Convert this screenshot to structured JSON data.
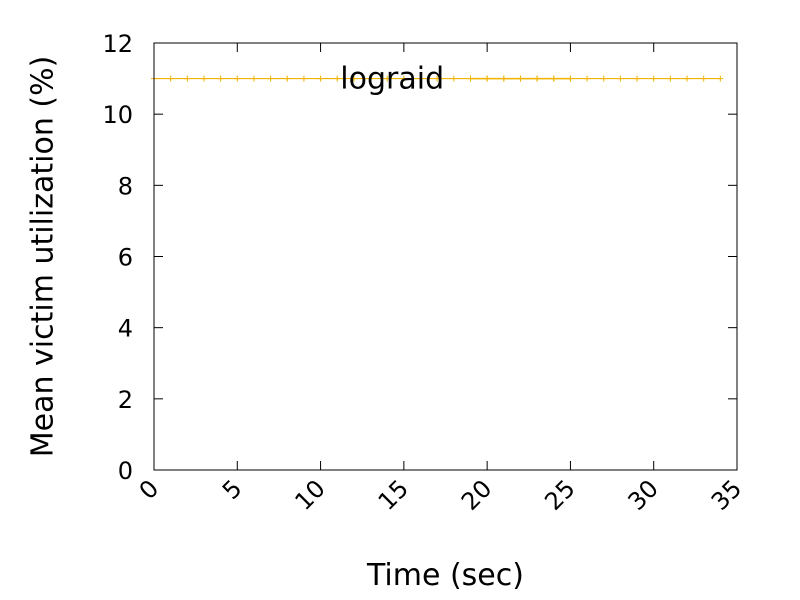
{
  "chart_data": {
    "type": "line",
    "xlabel": "Time (sec)",
    "ylabel": "Mean victim utilization (%)",
    "xlim": [
      0,
      35
    ],
    "ylim": [
      0,
      12
    ],
    "xticks": [
      "0",
      "5",
      "10",
      "15",
      "20",
      "25",
      "30",
      "35"
    ],
    "yticks": [
      "0",
      "2",
      "4",
      "6",
      "8",
      "10",
      "12"
    ],
    "grid": false,
    "legend_position": "top-center",
    "series": [
      {
        "name": "lograid",
        "color": "#f0b400",
        "marker": "plus",
        "x": [
          0,
          1,
          2,
          3,
          4,
          5,
          6,
          7,
          8,
          9,
          10,
          11,
          12,
          13,
          14,
          15,
          16,
          17,
          18,
          19,
          20,
          21,
          22,
          23,
          24,
          25,
          26,
          27,
          28,
          29,
          30,
          31,
          32,
          33,
          34
        ],
        "y": [
          11,
          11,
          11,
          11,
          11,
          11,
          11,
          11,
          11,
          11,
          11,
          11,
          11,
          11,
          11,
          11,
          11,
          11,
          11,
          11,
          11,
          11,
          11,
          11,
          11,
          11,
          11,
          11,
          11,
          11,
          11,
          11,
          11,
          11,
          11
        ]
      }
    ]
  }
}
